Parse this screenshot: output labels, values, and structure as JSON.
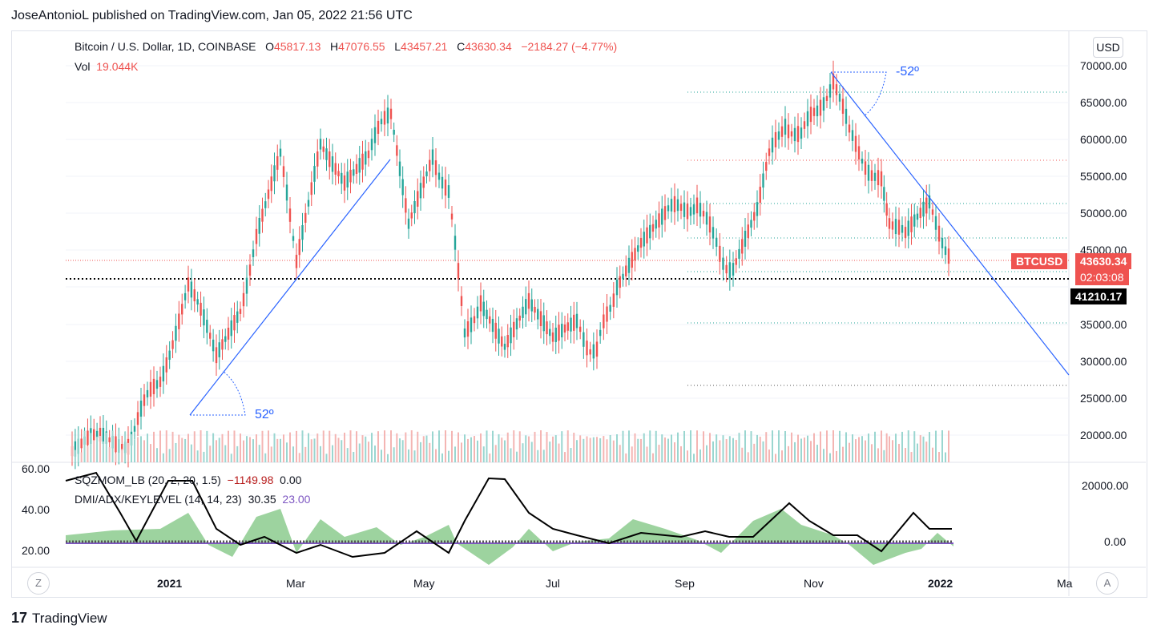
{
  "publisher_line": "JoseAntonioL published on TradingView.com, Jan 05, 2022 21:56 UTC",
  "legend": {
    "symbol": "Bitcoin / U.S. Dollar, 1D, COINBASE",
    "o_label": "O",
    "o_value": "45817.13",
    "h_label": "H",
    "h_value": "47076.55",
    "l_label": "L",
    "l_value": "43457.21",
    "c_label": "C",
    "c_value": "43630.34",
    "change": "−2184.27 (−4.77%)",
    "vol_label": "Vol",
    "vol_value": "19.044K"
  },
  "indicators": {
    "sqzmom_label": "SQZMOM_LB (20, 2, 20, 1.5)",
    "sqzmom_value": "−1149.98",
    "sqzmom_value2": "0.00",
    "dmi_label": "DMI/ADX/KEYLEVEL (14, 14, 23)",
    "dmi_value": "30.35",
    "dmi_value2": "23.00"
  },
  "currency_button": "USD",
  "price_axis": [
    "70000.00",
    "65000.00",
    "60000.00",
    "55000.00",
    "50000.00",
    "45000.00",
    "35000.00",
    "30000.00",
    "25000.00",
    "20000.00"
  ],
  "ticker_tag": "BTCUSD",
  "last_price": "43630.34",
  "countdown": "02:03:08",
  "level_price": "41210.17",
  "lower_axis": [
    "20000.00",
    "0.00"
  ],
  "left_axis": [
    "60.00",
    "40.00",
    "20.00"
  ],
  "time_axis": [
    "2021",
    "Mar",
    "May",
    "Jul",
    "Sep",
    "Nov",
    "2022",
    "Ma"
  ],
  "angle_up": "52º",
  "angle_down": "-52º",
  "z_button": "Z",
  "a_button": "A",
  "footer_brand": "TradingView",
  "colors": {
    "up": "#26a69a",
    "down": "#ef5350",
    "trend": "#2962ff",
    "level": "#000000"
  }
}
